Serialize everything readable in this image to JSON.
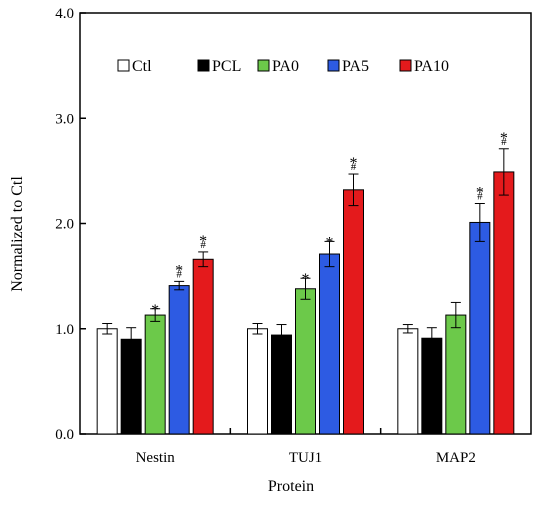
{
  "chart_data": {
    "type": "bar",
    "title": "",
    "xlabel": "Protein",
    "ylabel": "Normalized to Ctl",
    "ylim": [
      0,
      4
    ],
    "yticks": [
      "0.0",
      "1.0",
      "2.0",
      "3.0",
      "4.0"
    ],
    "ytick_values": [
      0,
      1,
      2,
      3,
      4
    ],
    "grid": false,
    "legend_position": "top",
    "categories": [
      "Nestin",
      "TUJ1",
      "MAP2"
    ],
    "series": [
      {
        "name": "Ctl",
        "color": "#ffffff",
        "values": [
          1.0,
          1.0,
          1.0
        ],
        "errors": [
          0.05,
          0.05,
          0.04
        ],
        "marks": [
          [],
          [],
          []
        ]
      },
      {
        "name": "PCL",
        "color": "#000000",
        "values": [
          0.9,
          0.94,
          0.91
        ],
        "errors": [
          0.11,
          0.1,
          0.1
        ],
        "marks": [
          [],
          [],
          []
        ]
      },
      {
        "name": "PA0",
        "color": "#6cc94a",
        "values": [
          1.13,
          1.38,
          1.13
        ],
        "errors": [
          0.06,
          0.1,
          0.12
        ],
        "marks": [
          [
            "*"
          ],
          [
            "*"
          ],
          []
        ]
      },
      {
        "name": "PA5",
        "color": "#2d5be3",
        "values": [
          1.41,
          1.71,
          2.01
        ],
        "errors": [
          0.04,
          0.12,
          0.18
        ],
        "marks": [
          [
            "*",
            "#"
          ],
          [
            "*"
          ],
          [
            "*",
            "#"
          ]
        ]
      },
      {
        "name": "PA10",
        "color": "#e41a1c",
        "values": [
          1.66,
          2.32,
          2.49
        ],
        "errors": [
          0.07,
          0.15,
          0.22
        ],
        "marks": [
          [
            "*",
            "#"
          ],
          [
            "*",
            "#"
          ],
          [
            "*",
            "#"
          ]
        ]
      }
    ]
  }
}
